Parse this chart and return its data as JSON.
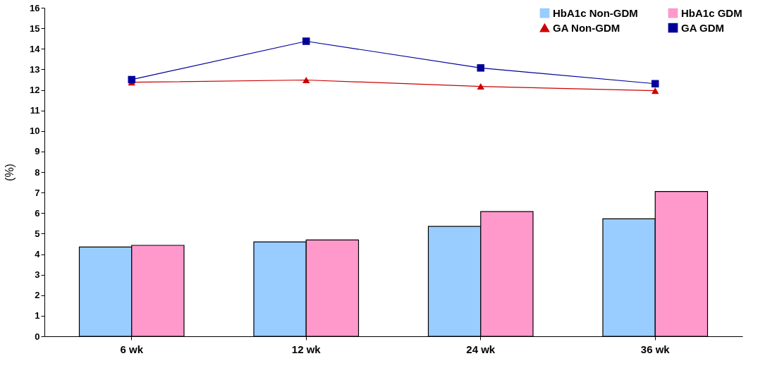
{
  "chart_data": {
    "type": "bar",
    "ylabel": "(%)",
    "categories": [
      "6 wk",
      "12 wk",
      "24 wk",
      "36 wk"
    ],
    "series": [
      {
        "name": "HbA1c Non-GDM",
        "color": "#99ccff",
        "values": [
          4.35,
          4.6,
          5.35,
          5.72
        ]
      },
      {
        "name": "HbA1c GDM",
        "color": "#ff99cc",
        "values": [
          4.43,
          4.69,
          6.07,
          7.05
        ]
      },
      {
        "name": "GA Non-GDM",
        "type": "line",
        "color": "#cc0000",
        "marker": "triangle",
        "values": [
          12.37,
          12.48,
          12.17,
          11.96
        ]
      },
      {
        "name": "GA GDM",
        "type": "line",
        "color": "#000099",
        "marker": "square",
        "values": [
          12.5,
          14.37,
          13.07,
          12.3
        ]
      }
    ],
    "ylim": [
      0,
      16
    ],
    "yticks": [
      0,
      1,
      2,
      3,
      4,
      5,
      6,
      7,
      8,
      9,
      10,
      11,
      12,
      13,
      14,
      15,
      16
    ],
    "grid": false,
    "legend": "top right"
  }
}
